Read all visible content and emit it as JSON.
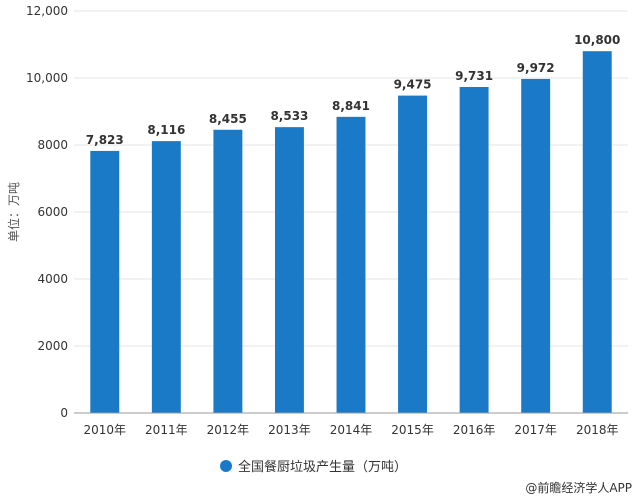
{
  "chart_data": {
    "type": "bar",
    "categories": [
      "2010年",
      "2011年",
      "2012年",
      "2013年",
      "2014年",
      "2015年",
      "2016年",
      "2017年",
      "2018年"
    ],
    "series": [
      {
        "name": "全国餐厨垃圾产生量（万吨）",
        "values": [
          7823,
          8116,
          8455,
          8533,
          8841,
          9475,
          9731,
          9972,
          10800
        ]
      }
    ],
    "data_labels": [
      "7,823",
      "8,116",
      "8,455",
      "8,533",
      "8,841",
      "9,475",
      "9,731",
      "9,972",
      "10,800"
    ],
    "ylabel": "单位：万吨",
    "ylim": [
      0,
      12000
    ],
    "yticks": [
      0,
      2000,
      4000,
      6000,
      8000,
      10000,
      12000
    ],
    "ytick_labels": [
      "0",
      "2000",
      "4000",
      "6000",
      "8000",
      "10,000",
      "12,000"
    ],
    "grid": true,
    "legend": "bottom",
    "colors": {
      "bar": "#1a7ac8",
      "grid": "#e5e5e5",
      "axis": "#999999",
      "text": "#333333"
    }
  },
  "footer": {
    "credit": "@前瞻经济学人APP"
  }
}
